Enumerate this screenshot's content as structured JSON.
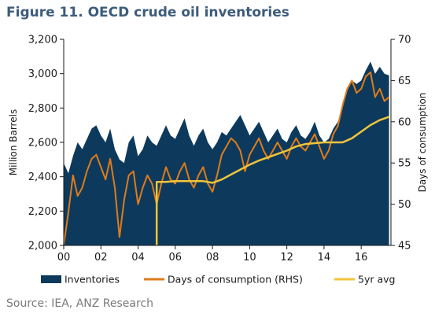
{
  "figure_title": "Figure 11.  OECD crude oil inventories",
  "source": "Source: IEA, ANZ Research",
  "chart_data": {
    "type": "area",
    "x_axis": {
      "label": "",
      "range": [
        2000,
        2017.6
      ],
      "ticks": [
        2000,
        2002,
        2004,
        2006,
        2008,
        2010,
        2012,
        2014,
        2016
      ],
      "tick_labels": [
        "00",
        "02",
        "04",
        "06",
        "08",
        "10",
        "12",
        "14",
        "16"
      ]
    },
    "y_left": {
      "label": "Million Barrels",
      "range": [
        2000,
        3200
      ],
      "ticks": [
        2000,
        2200,
        2400,
        2600,
        2800,
        3000,
        3200
      ],
      "tick_labels": [
        "2,000",
        "2,200",
        "2,400",
        "2,600",
        "2,800",
        "3,000",
        "3,200"
      ]
    },
    "y_right": {
      "label": "Days of consumption",
      "range": [
        45,
        70
      ],
      "ticks": [
        45,
        50,
        55,
        60,
        65,
        70
      ],
      "tick_labels": [
        "45",
        "50",
        "55",
        "60",
        "65",
        "70"
      ]
    },
    "grid": false,
    "legend_position": "bottom",
    "series": [
      {
        "name": "Inventories",
        "type": "area",
        "axis": "left",
        "color": "#0d3a5c",
        "x": [
          2000.0,
          2000.25,
          2000.5,
          2000.75,
          2001.0,
          2001.25,
          2001.5,
          2001.75,
          2002.0,
          2002.25,
          2002.5,
          2002.75,
          2003.0,
          2003.25,
          2003.5,
          2003.75,
          2004.0,
          2004.25,
          2004.5,
          2004.75,
          2005.0,
          2005.25,
          2005.5,
          2005.75,
          2006.0,
          2006.25,
          2006.5,
          2006.75,
          2007.0,
          2007.25,
          2007.5,
          2007.75,
          2008.0,
          2008.25,
          2008.5,
          2008.75,
          2009.0,
          2009.25,
          2009.5,
          2009.75,
          2010.0,
          2010.25,
          2010.5,
          2010.75,
          2011.0,
          2011.25,
          2011.5,
          2011.75,
          2012.0,
          2012.25,
          2012.5,
          2012.75,
          2013.0,
          2013.25,
          2013.5,
          2013.75,
          2014.0,
          2014.25,
          2014.5,
          2014.75,
          2015.0,
          2015.25,
          2015.5,
          2015.75,
          2016.0,
          2016.25,
          2016.5,
          2016.75,
          2017.0,
          2017.25,
          2017.5
        ],
        "values": [
          2480,
          2420,
          2520,
          2600,
          2560,
          2620,
          2680,
          2700,
          2640,
          2600,
          2680,
          2560,
          2500,
          2480,
          2600,
          2640,
          2520,
          2560,
          2640,
          2600,
          2580,
          2640,
          2700,
          2640,
          2620,
          2680,
          2740,
          2640,
          2580,
          2640,
          2680,
          2600,
          2560,
          2600,
          2660,
          2640,
          2680,
          2720,
          2760,
          2700,
          2640,
          2680,
          2720,
          2660,
          2600,
          2640,
          2680,
          2620,
          2600,
          2660,
          2700,
          2640,
          2620,
          2660,
          2720,
          2640,
          2600,
          2620,
          2680,
          2720,
          2800,
          2900,
          2960,
          2940,
          2960,
          3020,
          3070,
          3000,
          3040,
          3000,
          2990
        ]
      },
      {
        "name": "Days of consumption (RHS)",
        "type": "line",
        "axis": "right",
        "color": "#e07b1a",
        "x": [
          2000.0,
          2000.25,
          2000.5,
          2000.75,
          2001.0,
          2001.25,
          2001.5,
          2001.75,
          2002.0,
          2002.25,
          2002.5,
          2002.75,
          2003.0,
          2003.25,
          2003.5,
          2003.75,
          2004.0,
          2004.25,
          2004.5,
          2004.75,
          2005.0,
          2005.25,
          2005.5,
          2005.75,
          2006.0,
          2006.25,
          2006.5,
          2006.75,
          2007.0,
          2007.25,
          2007.5,
          2007.75,
          2008.0,
          2008.25,
          2008.5,
          2008.75,
          2009.0,
          2009.25,
          2009.5,
          2009.75,
          2010.0,
          2010.25,
          2010.5,
          2010.75,
          2011.0,
          2011.25,
          2011.5,
          2011.75,
          2012.0,
          2012.25,
          2012.5,
          2012.75,
          2013.0,
          2013.25,
          2013.5,
          2013.75,
          2014.0,
          2014.25,
          2014.5,
          2014.75,
          2015.0,
          2015.25,
          2015.5,
          2015.75,
          2016.0,
          2016.25,
          2016.5,
          2016.75,
          2017.0,
          2017.25,
          2017.5
        ],
        "values": [
          45.0,
          49.0,
          53.5,
          51.0,
          52.0,
          54.0,
          55.5,
          56.0,
          54.5,
          53.0,
          55.5,
          52.0,
          46.0,
          50.5,
          53.5,
          54.0,
          50.0,
          52.0,
          53.5,
          52.5,
          50.0,
          52.5,
          54.5,
          53.0,
          52.5,
          54.0,
          55.0,
          53.0,
          52.0,
          53.5,
          54.5,
          52.5,
          51.5,
          53.5,
          56.0,
          57.0,
          58.0,
          57.5,
          56.5,
          54.0,
          56.0,
          57.0,
          58.0,
          56.5,
          55.5,
          56.5,
          57.5,
          56.5,
          55.5,
          57.0,
          58.0,
          57.0,
          56.5,
          57.5,
          58.5,
          57.0,
          55.5,
          56.5,
          58.5,
          59.5,
          62.0,
          64.0,
          65.0,
          63.5,
          64.0,
          65.5,
          66.0,
          63.0,
          64.0,
          62.5,
          63.0
        ]
      },
      {
        "name": "5yr avg",
        "type": "line",
        "axis": "right",
        "color": "#f2c43a",
        "x": [
          2005.0,
          2005.0,
          2005.5,
          2006.0,
          2006.5,
          2007.0,
          2007.5,
          2008.0,
          2008.5,
          2009.0,
          2009.5,
          2010.0,
          2010.5,
          2011.0,
          2011.5,
          2012.0,
          2012.5,
          2013.0,
          2013.5,
          2014.0,
          2014.5,
          2015.0,
          2015.5,
          2016.0,
          2016.5,
          2017.0,
          2017.5
        ],
        "values": [
          45.0,
          52.7,
          52.7,
          52.8,
          52.8,
          52.8,
          52.8,
          52.6,
          53.0,
          53.6,
          54.2,
          54.8,
          55.3,
          55.7,
          56.1,
          56.5,
          57.0,
          57.3,
          57.4,
          57.5,
          57.5,
          57.5,
          58.0,
          58.8,
          59.6,
          60.2,
          60.6
        ]
      }
    ]
  }
}
